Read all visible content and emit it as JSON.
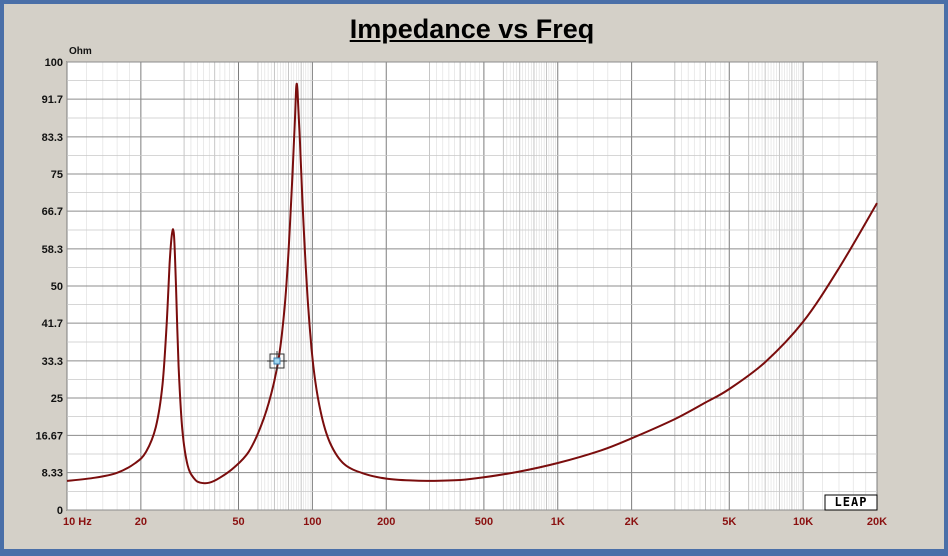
{
  "chart_data": {
    "type": "line",
    "title": "Impedance vs Freq",
    "y_unit": "Ohm",
    "xscale": "log",
    "xlim": [
      10,
      20000
    ],
    "ylim": [
      0,
      100
    ],
    "x_tick_values": [
      10,
      20,
      50,
      100,
      200,
      500,
      1000,
      2000,
      5000,
      10000,
      20000
    ],
    "x_tick_labels": [
      "10 Hz",
      "20",
      "50",
      "100",
      "200",
      "500",
      "1K",
      "2K",
      "5K",
      "10K",
      "20K"
    ],
    "y_tick_values": [
      0,
      8.33,
      16.67,
      25,
      33.3,
      41.7,
      50,
      58.3,
      66.7,
      75,
      83.3,
      91.7,
      100
    ],
    "y_tick_labels": [
      "0",
      "8.33",
      "16.67",
      "25",
      "33.3",
      "41.7",
      "50",
      "58.3",
      "66.7",
      "75",
      "83.3",
      "91.7",
      "100"
    ],
    "grid": true,
    "series": [
      {
        "color": "#7a0d0d",
        "points": [
          [
            10,
            6.5
          ],
          [
            13,
            7.2
          ],
          [
            16,
            8.3
          ],
          [
            19,
            10.5
          ],
          [
            21,
            13
          ],
          [
            23,
            18.5
          ],
          [
            24.5,
            28
          ],
          [
            25.5,
            42
          ],
          [
            26.2,
            55
          ],
          [
            26.8,
            61.8
          ],
          [
            27.3,
            61.3
          ],
          [
            27.8,
            50
          ],
          [
            28.5,
            32
          ],
          [
            29.5,
            18
          ],
          [
            31,
            10
          ],
          [
            33,
            7
          ],
          [
            35,
            6.1
          ],
          [
            38,
            6.1
          ],
          [
            42,
            7.2
          ],
          [
            48,
            9.5
          ],
          [
            55,
            13
          ],
          [
            62,
            19
          ],
          [
            68,
            26
          ],
          [
            73,
            34
          ],
          [
            77,
            45
          ],
          [
            80,
            58
          ],
          [
            83,
            75
          ],
          [
            85,
            88
          ],
          [
            86,
            94.5
          ],
          [
            87,
            93.5
          ],
          [
            89,
            82
          ],
          [
            92,
            64
          ],
          [
            96,
            46
          ],
          [
            101,
            32
          ],
          [
            108,
            22
          ],
          [
            118,
            15
          ],
          [
            135,
            10.2
          ],
          [
            165,
            8
          ],
          [
            200,
            7
          ],
          [
            250,
            6.6
          ],
          [
            300,
            6.5
          ],
          [
            400,
            6.7
          ],
          [
            500,
            7.3
          ],
          [
            700,
            8.6
          ],
          [
            1000,
            10.5
          ],
          [
            1500,
            13.3
          ],
          [
            2000,
            16
          ],
          [
            3000,
            20.3
          ],
          [
            4000,
            24
          ],
          [
            5000,
            27
          ],
          [
            7000,
            33
          ],
          [
            10000,
            42
          ],
          [
            14000,
            54
          ],
          [
            20000,
            68.5
          ]
        ]
      }
    ],
    "annotations": [
      "LEAP"
    ]
  }
}
